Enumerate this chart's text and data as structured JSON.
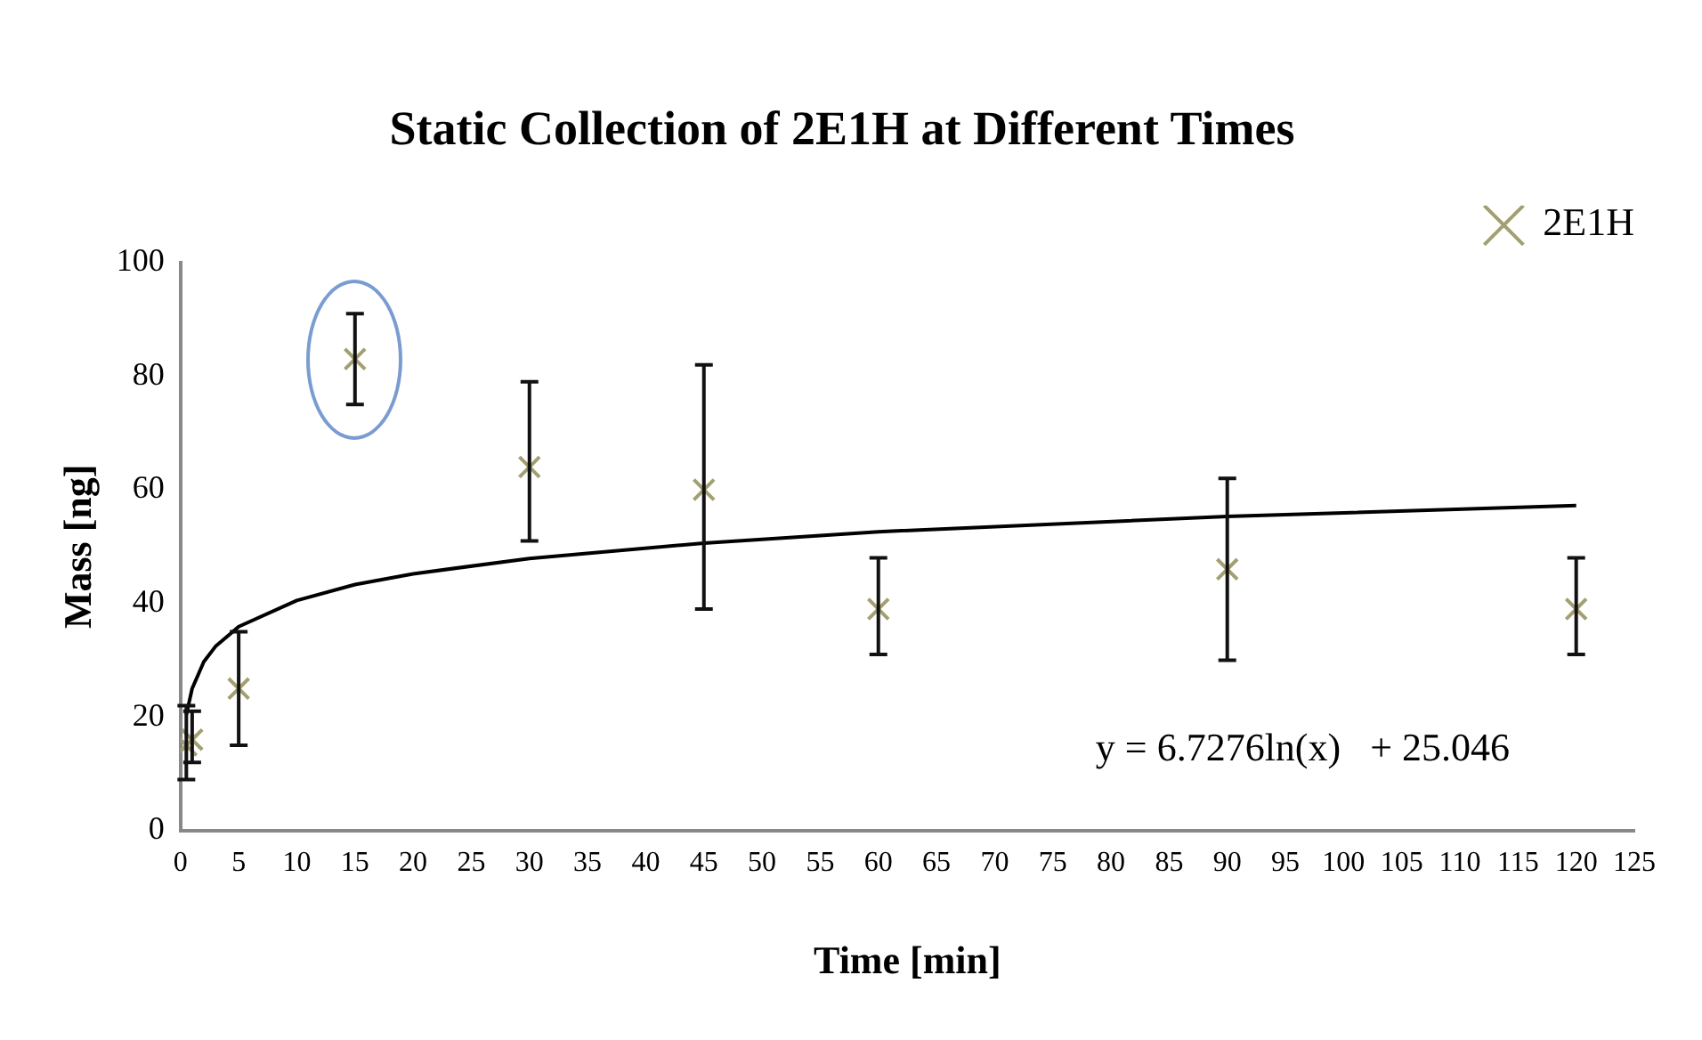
{
  "chart_data": {
    "type": "scatter",
    "title": "Static Collection of 2E1H at Different Times",
    "xlabel": "Time [min]",
    "ylabel": "Mass [ng]",
    "xlim": [
      0,
      125
    ],
    "xticks": [
      0,
      5,
      10,
      15,
      20,
      25,
      30,
      35,
      40,
      45,
      50,
      55,
      60,
      65,
      70,
      75,
      80,
      85,
      90,
      95,
      100,
      105,
      110,
      115,
      120,
      125
    ],
    "ylim": [
      0,
      100
    ],
    "yticks": [
      0,
      20,
      40,
      60,
      80,
      100
    ],
    "grid": false,
    "legend": "top right",
    "marker": "cross",
    "series": [
      {
        "name": "2E1H",
        "type": "scatter",
        "color": "#a39f72",
        "x": [
          0.5,
          1,
          5,
          15,
          30,
          45,
          60,
          90,
          120
        ],
        "values": [
          15,
          16,
          25,
          83,
          64,
          60,
          39,
          46,
          39
        ],
        "errors": [
          [
            9,
            22
          ],
          [
            12,
            21
          ],
          [
            15,
            35
          ],
          [
            75,
            91
          ],
          [
            51,
            79
          ],
          [
            39,
            82
          ],
          [
            31,
            48
          ],
          [
            30,
            62
          ],
          [
            31,
            48
          ]
        ]
      },
      {
        "type": "line",
        "color": "#000000",
        "marker": "none",
        "x": [
          0.5,
          1,
          2,
          3,
          5,
          10,
          15,
          20,
          30,
          45,
          60,
          90,
          120
        ],
        "values": [
          20.4,
          25.0,
          29.7,
          32.4,
          35.9,
          40.5,
          43.3,
          45.2,
          47.9,
          50.6,
          52.6,
          55.3,
          57.2
        ]
      }
    ],
    "annotations": [
      "y = 6.7276ln(x)   + 25.046"
    ]
  }
}
